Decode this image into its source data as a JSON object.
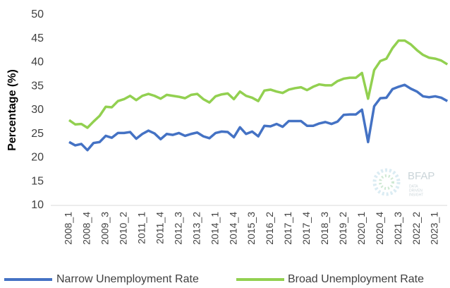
{
  "chart_data": {
    "type": "line",
    "y_label": "Percentage (%)",
    "logo": {
      "name": "BFAP",
      "tagline": [
        "DATA",
        "DRIVEN",
        "INSIGHT"
      ]
    },
    "categories": [
      "2008_1",
      null,
      null,
      "2008_4",
      null,
      null,
      "2009_3",
      null,
      null,
      "2010_2",
      null,
      null,
      "2011_1",
      null,
      null,
      "2011_4",
      null,
      null,
      "2012_3",
      null,
      null,
      "2013_2",
      null,
      null,
      "2014_1",
      null,
      null,
      "2014_4",
      null,
      null,
      "2015_3",
      null,
      null,
      "2016_2",
      null,
      null,
      "2017_1",
      null,
      null,
      "2017_4",
      null,
      null,
      "2018_3",
      null,
      null,
      "2019_2",
      null,
      null,
      "2020_1",
      null,
      null,
      "2020_4",
      null,
      null,
      "2021_3",
      null,
      null,
      "2022_2",
      null,
      null,
      "2023_1",
      null,
      null
    ],
    "series": [
      {
        "name": "Narrow Unemployment Rate",
        "color": "#4472c4",
        "values": [
          23.3,
          22.6,
          22.9,
          21.6,
          23.1,
          23.3,
          24.6,
          24.2,
          25.2,
          25.2,
          25.4,
          24.0,
          25.0,
          25.7,
          25.1,
          23.9,
          25.0,
          24.8,
          25.2,
          24.6,
          25.0,
          25.3,
          24.5,
          24.1,
          25.2,
          25.5,
          25.4,
          24.3,
          26.4,
          25.0,
          25.5,
          24.5,
          26.7,
          26.6,
          27.1,
          26.5,
          27.7,
          27.7,
          27.7,
          26.7,
          26.7,
          27.2,
          27.5,
          27.1,
          27.6,
          29.0,
          29.1,
          29.1,
          30.1,
          23.3,
          30.8,
          32.5,
          32.6,
          34.4,
          34.9,
          35.3,
          34.5,
          33.9,
          32.9,
          32.7,
          32.9,
          32.6,
          31.9
        ]
      },
      {
        "name": "Broad Unemployment Rate",
        "color": "#92d050",
        "values": [
          27.9,
          27.0,
          27.1,
          26.3,
          27.6,
          28.8,
          30.7,
          30.6,
          31.9,
          32.3,
          33.0,
          32.1,
          33.0,
          33.4,
          33.0,
          32.4,
          33.2,
          33.0,
          32.8,
          32.5,
          33.2,
          33.4,
          32.3,
          31.6,
          32.9,
          33.3,
          33.5,
          32.3,
          33.9,
          33.0,
          32.6,
          31.9,
          34.1,
          34.3,
          33.9,
          33.6,
          34.3,
          34.6,
          34.8,
          34.2,
          34.9,
          35.4,
          35.2,
          35.2,
          36.1,
          36.6,
          36.8,
          36.8,
          37.8,
          32.4,
          38.4,
          40.3,
          40.8,
          43.0,
          44.6,
          44.6,
          43.8,
          42.6,
          41.6,
          41.0,
          40.8,
          40.4,
          39.6
        ]
      }
    ],
    "ylim": [
      10,
      50
    ],
    "yticks": [
      10,
      15,
      20,
      25,
      30,
      35,
      40,
      45,
      50
    ],
    "grid": false,
    "legend": "bottom"
  }
}
